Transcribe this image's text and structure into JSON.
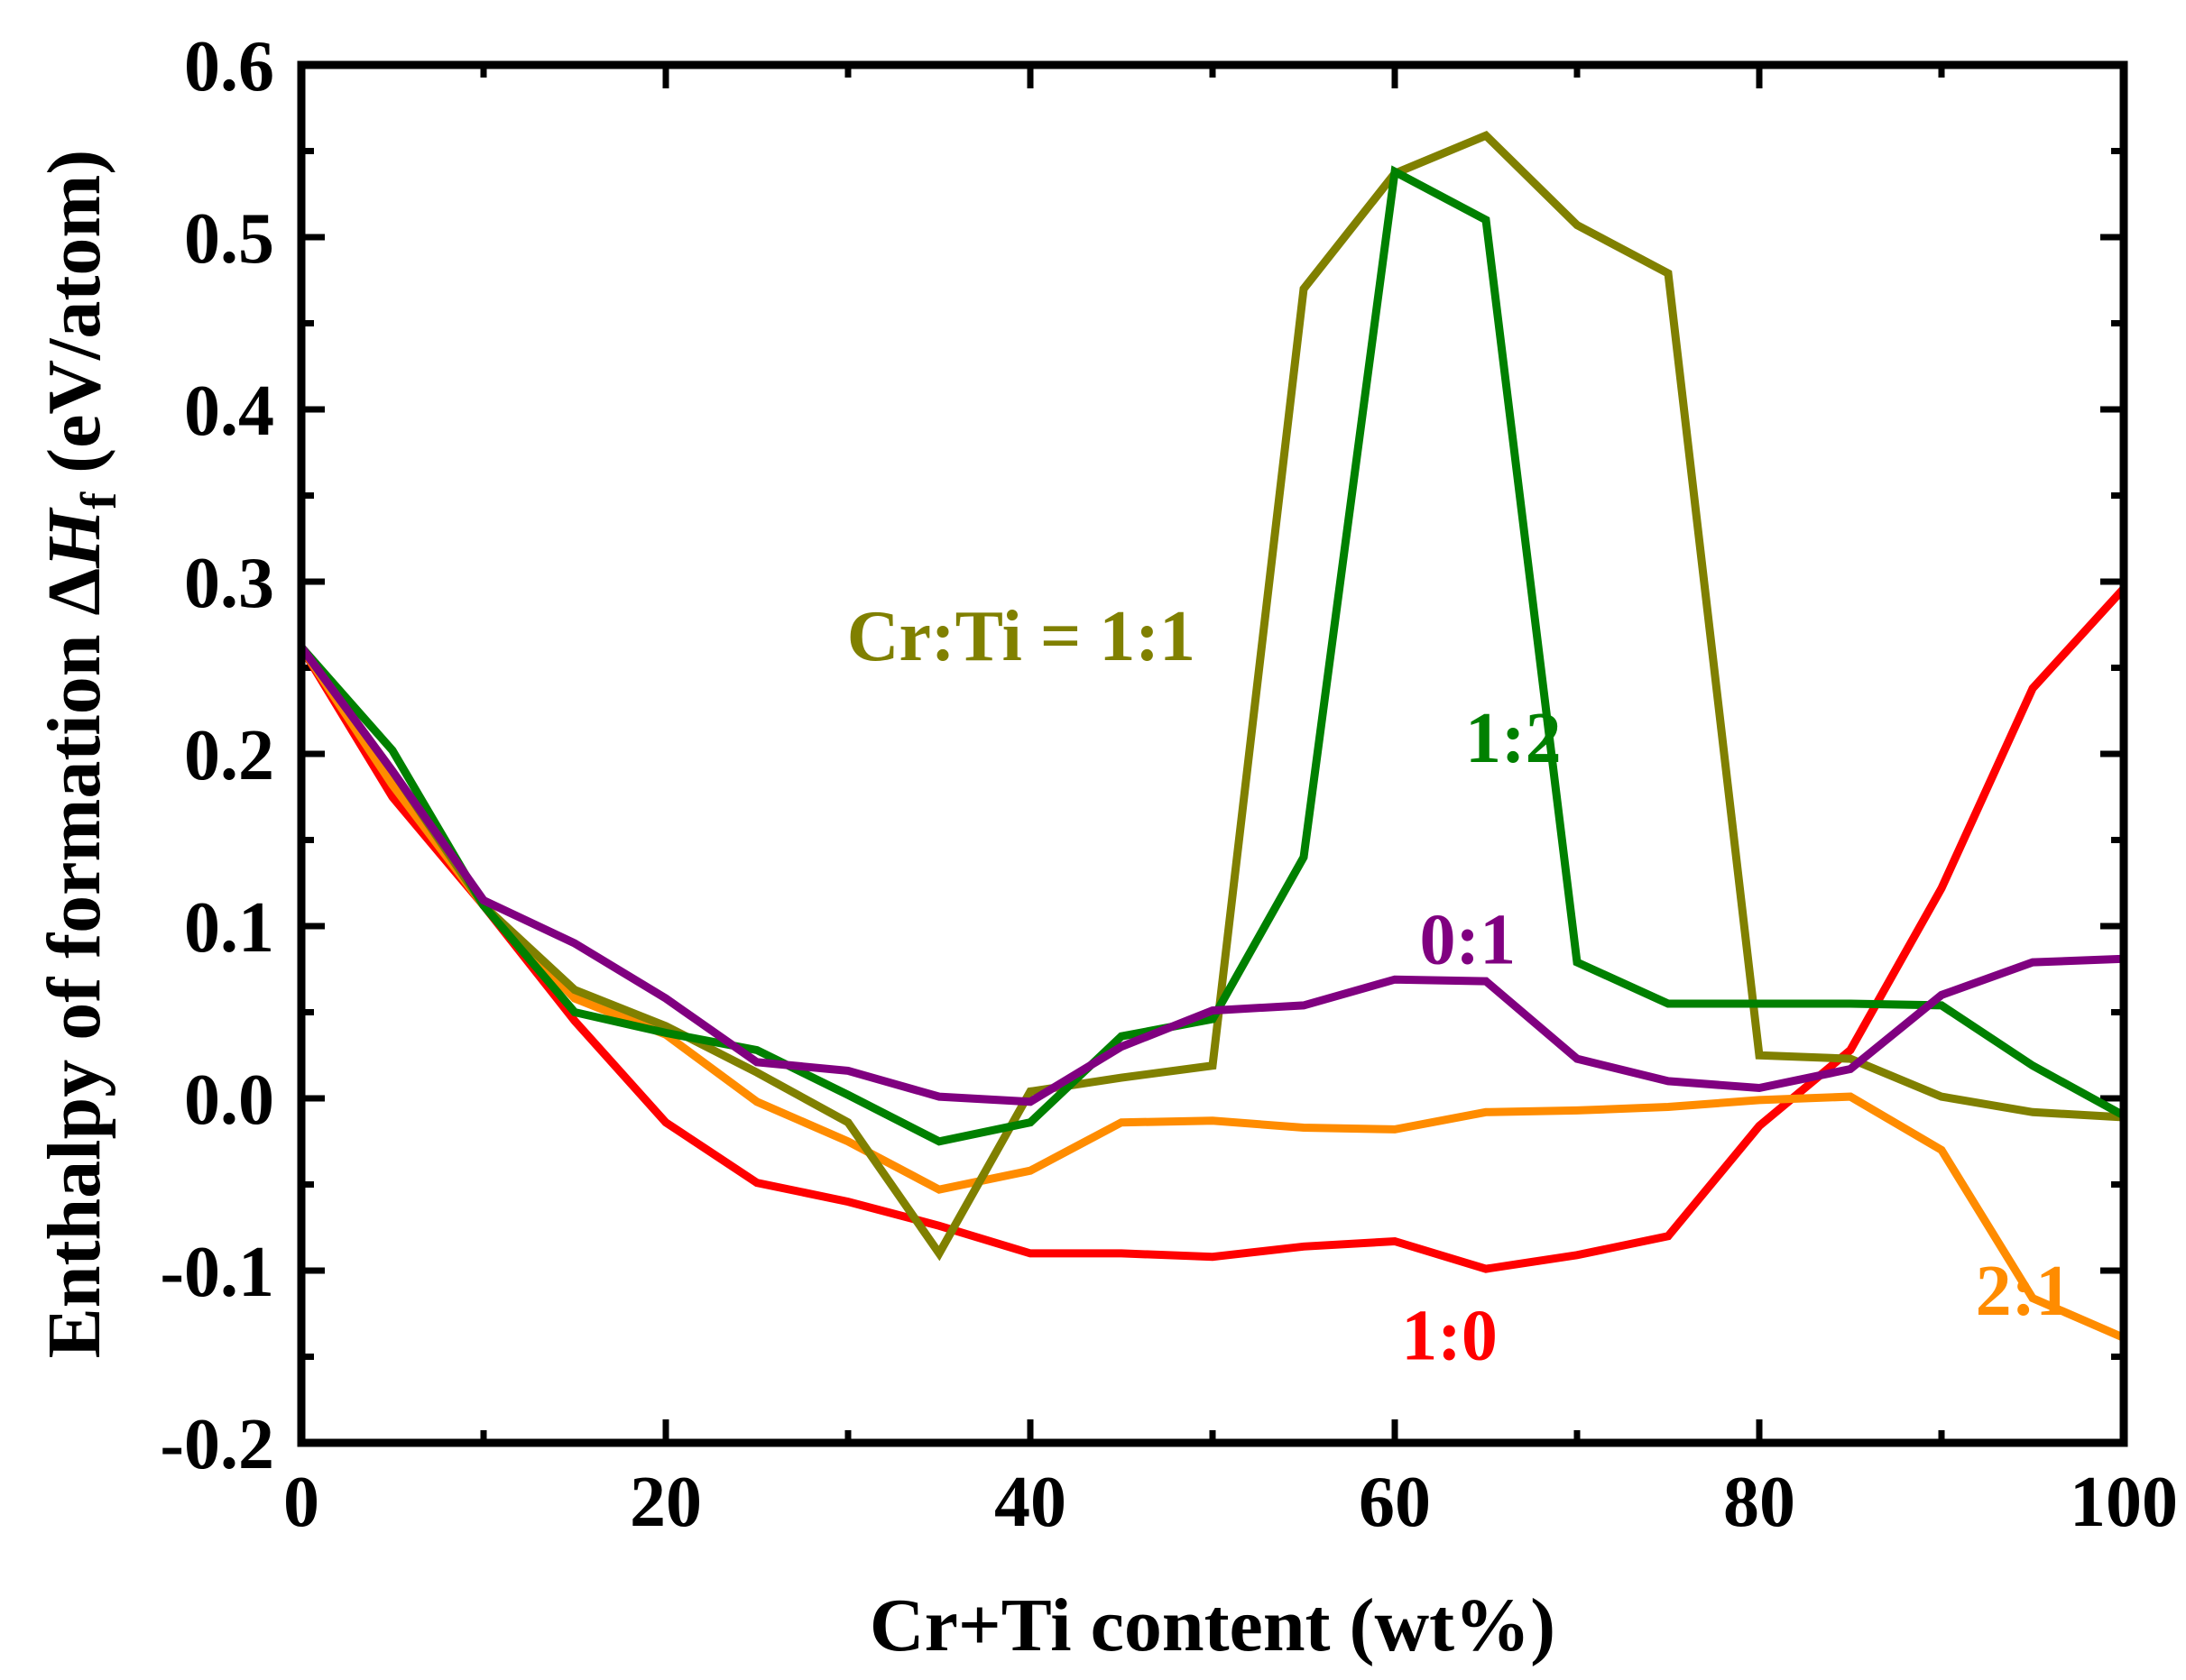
{
  "chart_data": {
    "type": "line",
    "title": "",
    "xlabel": "Cr+Ti content (wt%)",
    "ylabel": {
      "prefix": "Enthalpy of formation Δ",
      "symbol": "H",
      "subscript": "f",
      "suffix": " (eV/atom)"
    },
    "xlim": [
      0,
      100
    ],
    "ylim": [
      -0.2,
      0.6
    ],
    "xticks": [
      0,
      20,
      40,
      60,
      80,
      100
    ],
    "xtick_labels": [
      "0",
      "20",
      "40",
      "60",
      "80",
      "100"
    ],
    "yticks": [
      -0.2,
      -0.1,
      0.0,
      0.1,
      0.2,
      0.3,
      0.4,
      0.5,
      0.6
    ],
    "ytick_labels": [
      "-0.2",
      "-0.1",
      "0.0",
      "0.1",
      "0.2",
      "0.3",
      "0.4",
      "0.5",
      "0.6"
    ],
    "grid": false,
    "x": [
      0,
      5,
      10,
      15,
      20,
      25,
      30,
      35,
      40,
      45,
      50,
      55,
      60,
      65,
      70,
      75,
      80,
      85,
      90,
      95,
      100
    ],
    "series": [
      {
        "name": "1:0",
        "label": "1:0",
        "color": "#ff0000",
        "values": [
          0.262,
          0.175,
          0.112,
          0.045,
          -0.014,
          -0.049,
          -0.06,
          -0.074,
          -0.09,
          -0.09,
          -0.092,
          -0.086,
          -0.083,
          -0.099,
          -0.091,
          -0.08,
          -0.016,
          0.028,
          0.122,
          0.238,
          0.296
        ]
      },
      {
        "name": "2:1",
        "label": "2:1",
        "color": "#ff8c00",
        "values": [
          0.262,
          0.182,
          0.112,
          0.058,
          0.037,
          -0.002,
          -0.025,
          -0.053,
          -0.042,
          -0.014,
          -0.013,
          -0.017,
          -0.018,
          -0.008,
          -0.007,
          -0.005,
          -0.001,
          0.001,
          -0.03,
          -0.116,
          -0.139
        ]
      },
      {
        "name": "Cr:Ti = 1:1",
        "label": "Cr:Ti = 1:1",
        "color": "#808000",
        "values": [
          0.262,
          0.19,
          0.112,
          0.063,
          0.042,
          0.015,
          -0.014,
          -0.09,
          0.004,
          0.012,
          0.019,
          0.47,
          0.537,
          0.559,
          0.507,
          0.479,
          0.025,
          0.023,
          0.001,
          -0.008,
          -0.011
        ]
      },
      {
        "name": "1:2",
        "label": "1:2",
        "color": "#008000",
        "values": [
          0.262,
          0.202,
          0.112,
          0.05,
          0.038,
          0.028,
          0.002,
          -0.025,
          -0.014,
          0.036,
          0.046,
          0.14,
          0.538,
          0.51,
          0.079,
          0.055,
          0.055,
          0.055,
          0.054,
          0.019,
          -0.01
        ]
      },
      {
        "name": "0:1",
        "label": "0:1",
        "color": "#800080",
        "values": [
          0.262,
          0.19,
          0.115,
          0.09,
          0.058,
          0.021,
          0.016,
          0.001,
          -0.002,
          0.03,
          0.051,
          0.054,
          0.069,
          0.068,
          0.023,
          0.01,
          0.006,
          0.017,
          0.06,
          0.079,
          0.081
        ]
      }
    ]
  }
}
